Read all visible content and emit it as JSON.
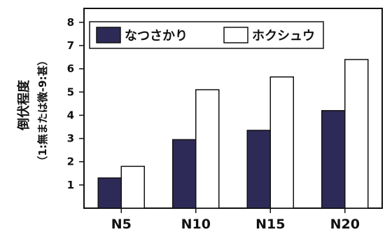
{
  "chart_data": {
    "type": "bar",
    "categories": [
      "N5",
      "N10",
      "N15",
      "N20"
    ],
    "series": [
      {
        "name": "なつさかり",
        "values": [
          1.3,
          2.95,
          3.35,
          4.2
        ],
        "color": "#2e2a57"
      },
      {
        "name": "ホクシュウ",
        "values": [
          1.8,
          5.1,
          5.65,
          6.4
        ],
        "color": "#ffffff"
      }
    ],
    "ylabel": "倒伏程度",
    "ylabel_sub": "（1:無または微-9:甚）",
    "ylim": [
      0,
      8.6
    ],
    "yticks": [
      1,
      2,
      3,
      4,
      5,
      6,
      7,
      8
    ],
    "legend_position": "top"
  }
}
